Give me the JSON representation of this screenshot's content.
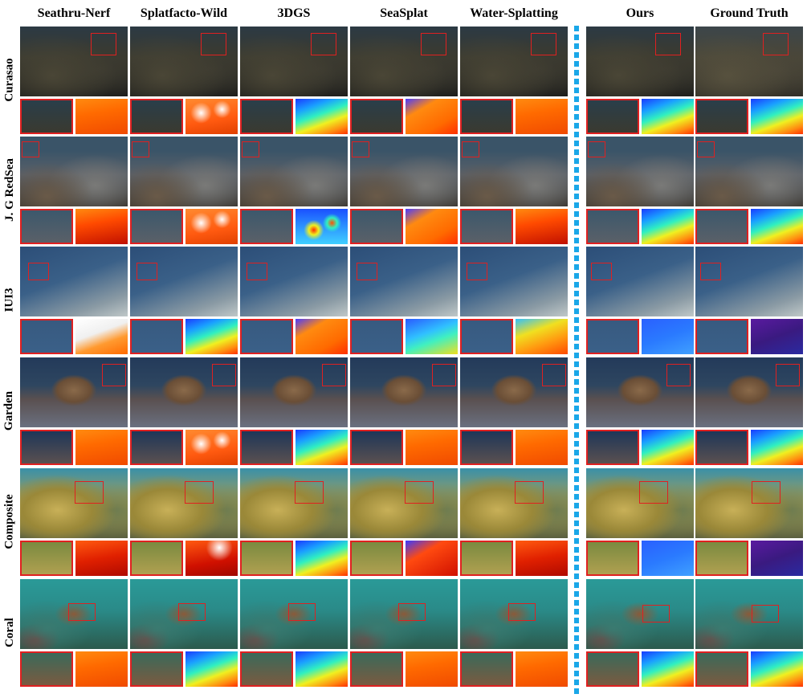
{
  "columns": [
    {
      "id": "seathru-nerf",
      "label": "Seathru-Nerf"
    },
    {
      "id": "splatfacto-wild",
      "label": "Splatfacto-Wild"
    },
    {
      "id": "3dgs",
      "label": "3DGS"
    },
    {
      "id": "seasplat",
      "label": "SeaSplat"
    },
    {
      "id": "water-splatting",
      "label": "Water-Splatting"
    },
    {
      "id": "ours",
      "label": "Ours"
    },
    {
      "id": "ground-truth",
      "label": "Ground Truth"
    }
  ],
  "rows": [
    {
      "id": "curasao",
      "label": "Curasao",
      "scene": "reef-dark",
      "colors": {
        "top": "#2c3a44",
        "mid": "#3a3a30",
        "bot": "#1c1c1a"
      },
      "crop_color": "#2a3e4a",
      "depth_style": [
        "orange",
        "orangewhite",
        "rainbow",
        "orangeblue",
        "orange",
        "rainbow",
        "rainbow"
      ]
    },
    {
      "id": "jg-redsea",
      "label": "J. G RedSea",
      "scene": "reef-rubble",
      "colors": {
        "top": "#3a5468",
        "mid": "#5a6068",
        "bot": "#3a3630"
      },
      "crop_color": "#3c586c",
      "depth_style": [
        "orangered",
        "orangewhite",
        "rainbowblob",
        "orangeblue",
        "orangered",
        "rainbow",
        "rainbow"
      ]
    },
    {
      "id": "iui3",
      "label": "IUI3",
      "scene": "seafloor-blue",
      "colors": {
        "top": "#2c4e78",
        "mid": "#3a6088",
        "bot": "#8a9aa4"
      },
      "crop_color": "#385a80",
      "depth_style": [
        "whiteorange",
        "rainbow",
        "orangeblue",
        "blueyellow",
        "orangeyellow",
        "blue",
        "purple"
      ]
    },
    {
      "id": "garden",
      "label": "Garden",
      "scene": "garden-table",
      "colors": {
        "top": "#233a5a",
        "mid": "#5a5050",
        "bot": "#6a7080"
      },
      "crop_color": "#1e3658",
      "depth_style": [
        "orange",
        "orangewhite",
        "rainbow",
        "orange",
        "orange",
        "rainbow",
        "rainbow"
      ]
    },
    {
      "id": "composite",
      "label": "Composite",
      "scene": "coral-yellow",
      "colors": {
        "top": "#3a90a8",
        "mid": "#b0a050",
        "bot": "#5a6040"
      },
      "crop_color": "#7a8a40",
      "depth_style": [
        "red",
        "redwhite",
        "rainbow",
        "redblue",
        "red",
        "blue",
        "purple"
      ]
    },
    {
      "id": "coral",
      "label": "Coral",
      "scene": "coral-teal",
      "colors": {
        "top": "#2a9a98",
        "mid": "#7a5a40",
        "bot": "#2c5a4c"
      },
      "crop_color": "#3a6a5a",
      "depth_style": [
        "orange",
        "rainbow",
        "rainbow",
        "orange",
        "orange",
        "rainbow",
        "rainbow"
      ]
    }
  ]
}
